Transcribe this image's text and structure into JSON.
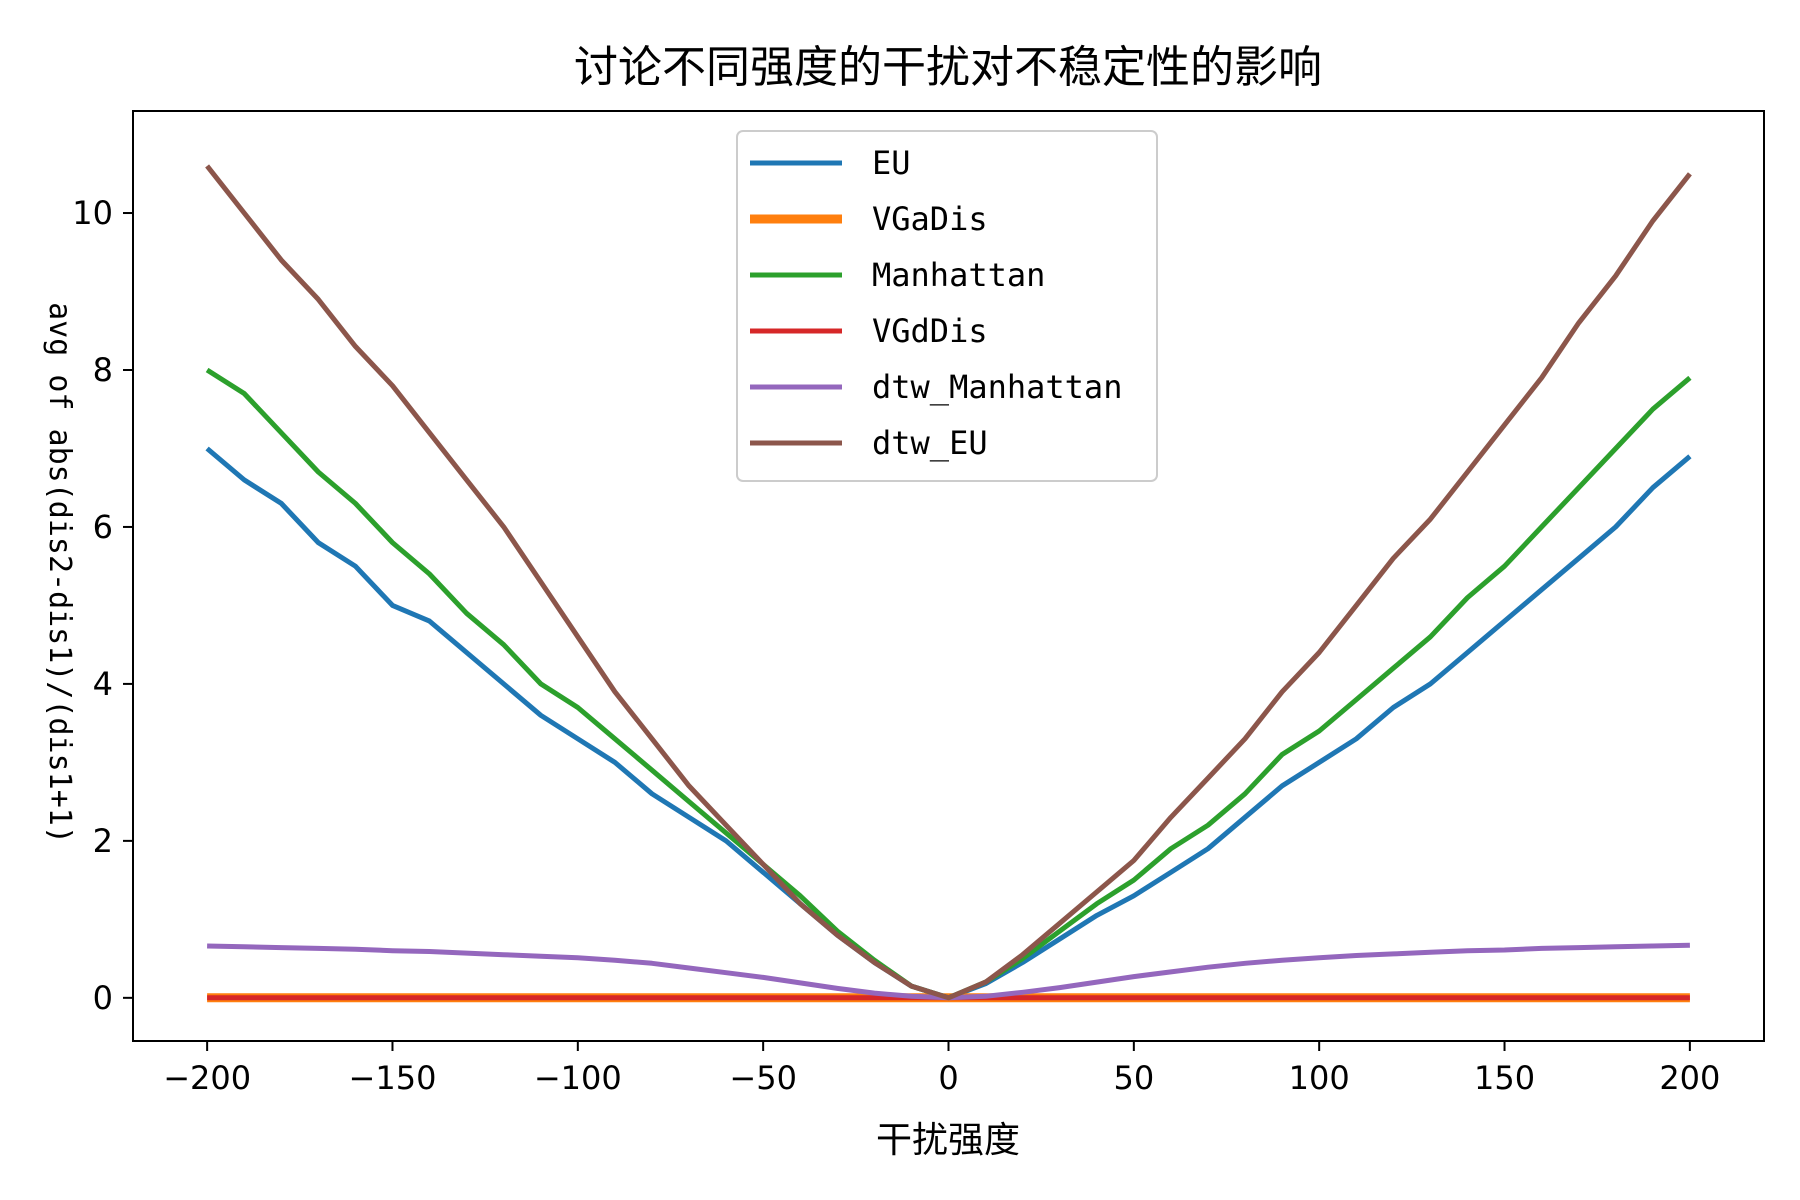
{
  "chart_data": {
    "type": "line",
    "title": "讨论不同强度的干扰对不稳定性的影响",
    "xlabel": "干扰强度",
    "ylabel": "avg of abs(dis2-dis1)/(dis1+1)",
    "xlim": [
      -220,
      220
    ],
    "ylim": [
      -0.55,
      11.3
    ],
    "xticks": [
      -200,
      -150,
      -100,
      -50,
      0,
      50,
      100,
      150,
      200
    ],
    "xtick_labels": [
      "−200",
      "−150",
      "−100",
      "−50",
      "0",
      "50",
      "100",
      "150",
      "200"
    ],
    "yticks": [
      0,
      2,
      4,
      6,
      8,
      10
    ],
    "ytick_labels": [
      "0",
      "2",
      "4",
      "6",
      "8",
      "10"
    ],
    "grid": false,
    "legend_position": "top-center",
    "x": [
      -200,
      -190,
      -180,
      -170,
      -160,
      -150,
      -140,
      -130,
      -120,
      -110,
      -100,
      -90,
      -80,
      -70,
      -60,
      -50,
      -40,
      -30,
      -20,
      -10,
      0,
      10,
      20,
      30,
      40,
      50,
      60,
      70,
      80,
      90,
      100,
      110,
      120,
      130,
      140,
      150,
      160,
      170,
      180,
      190,
      200
    ],
    "series": [
      {
        "name": "EU",
        "color": "#1f77b4",
        "values": [
          7.0,
          6.6,
          6.3,
          5.8,
          5.5,
          5.0,
          4.8,
          4.4,
          4.0,
          3.6,
          3.3,
          3.0,
          2.6,
          2.3,
          2.0,
          1.6,
          1.2,
          0.8,
          0.45,
          0.15,
          0.0,
          0.18,
          0.45,
          0.75,
          1.05,
          1.3,
          1.6,
          1.9,
          2.3,
          2.7,
          3.0,
          3.3,
          3.7,
          4.0,
          4.4,
          4.8,
          5.2,
          5.6,
          6.0,
          6.5,
          6.9
        ]
      },
      {
        "name": "VGaDis",
        "color": "#ff7f0e",
        "values": [
          0,
          0,
          0,
          0,
          0,
          0,
          0,
          0,
          0,
          0,
          0,
          0,
          0,
          0,
          0,
          0,
          0,
          0,
          0,
          0,
          0,
          0,
          0,
          0,
          0,
          0,
          0,
          0,
          0,
          0,
          0,
          0,
          0,
          0,
          0,
          0,
          0,
          0,
          0,
          0,
          0
        ]
      },
      {
        "name": "Manhattan",
        "color": "#2ca02c",
        "values": [
          8.0,
          7.7,
          7.2,
          6.7,
          6.3,
          5.8,
          5.4,
          4.9,
          4.5,
          4.0,
          3.7,
          3.3,
          2.9,
          2.5,
          2.1,
          1.7,
          1.3,
          0.85,
          0.48,
          0.15,
          0.0,
          0.2,
          0.5,
          0.85,
          1.2,
          1.5,
          1.9,
          2.2,
          2.6,
          3.1,
          3.4,
          3.8,
          4.2,
          4.6,
          5.1,
          5.5,
          6.0,
          6.5,
          7.0,
          7.5,
          7.9
        ]
      },
      {
        "name": "VGdDis",
        "color": "#d62728",
        "values": [
          0,
          0,
          0,
          0,
          0,
          0,
          0,
          0,
          0,
          0,
          0,
          0,
          0,
          0,
          0,
          0,
          0,
          0,
          0,
          0,
          0,
          0,
          0,
          0,
          0,
          0,
          0,
          0,
          0,
          0,
          0,
          0,
          0,
          0,
          0,
          0,
          0,
          0,
          0,
          0,
          0
        ]
      },
      {
        "name": "dtw_Manhattan",
        "color": "#9467bd",
        "values": [
          0.66,
          0.65,
          0.64,
          0.63,
          0.62,
          0.6,
          0.59,
          0.57,
          0.55,
          0.53,
          0.51,
          0.48,
          0.44,
          0.38,
          0.32,
          0.26,
          0.19,
          0.12,
          0.06,
          0.02,
          0.0,
          0.02,
          0.07,
          0.13,
          0.2,
          0.27,
          0.33,
          0.39,
          0.44,
          0.48,
          0.51,
          0.54,
          0.56,
          0.58,
          0.6,
          0.61,
          0.63,
          0.64,
          0.65,
          0.66,
          0.67
        ]
      },
      {
        "name": "dtw_EU",
        "color": "#8c564b",
        "values": [
          10.6,
          10.0,
          9.4,
          8.9,
          8.3,
          7.8,
          7.2,
          6.6,
          6.0,
          5.3,
          4.6,
          3.9,
          3.3,
          2.7,
          2.2,
          1.7,
          1.2,
          0.8,
          0.45,
          0.15,
          0.0,
          0.2,
          0.55,
          0.95,
          1.35,
          1.75,
          2.3,
          2.8,
          3.3,
          3.9,
          4.4,
          5.0,
          5.6,
          6.1,
          6.7,
          7.3,
          7.9,
          8.6,
          9.2,
          9.9,
          10.5
        ]
      }
    ]
  }
}
